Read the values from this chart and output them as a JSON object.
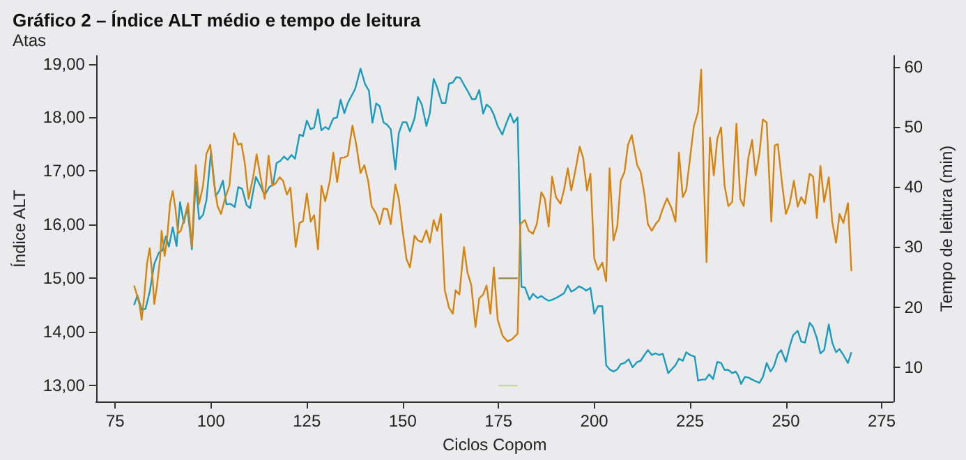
{
  "chart_data": {
    "type": "line",
    "title": "Gráfico 2 – Índice ALT médio e tempo de leitura",
    "subtitle": "Atas",
    "xlabel": "Ciclos Copom",
    "ylabel": "Índice ALT",
    "y2label": "Tempo de leitura (min)",
    "xlim": [
      70,
      278
    ],
    "xticks": [
      75,
      100,
      125,
      150,
      175,
      200,
      225,
      250,
      275
    ],
    "ylim": [
      12.7,
      19.15
    ],
    "yticks": [
      {
        "value": 13,
        "label": "13,00"
      },
      {
        "value": 14,
        "label": "14,00"
      },
      {
        "value": 15,
        "label": "15,00"
      },
      {
        "value": 16,
        "label": "16,00"
      },
      {
        "value": 17,
        "label": "17,00"
      },
      {
        "value": 18,
        "label": "18,00"
      },
      {
        "value": 19,
        "label": "19,00"
      }
    ],
    "y2lim": [
      4.3,
      61.8
    ],
    "y2ticks": [
      10,
      20,
      30,
      40,
      50,
      60
    ],
    "grid": false,
    "marker": "none",
    "line_style": "solid",
    "series": [
      {
        "color": "#1a9bbd",
        "x": [
          79.9,
          80.8,
          81.9,
          82.9,
          84.0,
          85.2,
          86.4,
          87.3,
          88.2,
          89.0,
          90,
          91,
          91.9,
          92.9,
          93.8,
          95,
          96,
          96.9,
          97.9,
          98.8,
          100,
          101.2,
          102.1,
          103.1,
          104,
          105,
          106.2,
          107.1,
          108.1,
          109.3,
          110.2,
          111.7,
          112.9,
          114,
          115.2,
          116.2,
          117.1,
          118.1,
          119,
          120,
          121,
          121.9,
          123.1,
          124,
          125,
          126,
          126.9,
          127.9,
          128.8,
          129.8,
          130.7,
          131.9,
          132.9,
          133.8,
          134.8,
          135.7,
          136.7,
          137.6,
          139,
          140.2,
          141.2,
          142.1,
          143.1,
          144,
          145,
          146,
          146.9,
          148.1,
          149,
          150,
          151,
          151.9,
          153.1,
          154,
          155,
          156.2,
          157.1,
          158.1,
          159,
          160.2,
          161.2,
          162.1,
          163.1,
          164,
          165,
          166,
          166.9,
          168.1,
          169,
          170,
          171,
          171.9,
          172.9,
          173.8,
          174.8,
          176,
          177.1,
          178.1,
          179,
          180,
          181,
          181.9,
          183.1,
          184,
          185.2,
          186.2,
          187.1,
          188.1,
          189,
          190,
          191.2,
          192.1,
          193.1,
          194,
          195,
          196,
          196.9,
          197.9,
          199,
          200,
          201,
          202.1,
          203.1,
          204,
          205,
          206,
          206.9,
          207.9,
          209,
          210,
          211.2,
          212.1,
          213.1,
          214,
          215,
          216,
          216.9,
          217.9,
          219.3,
          220.2,
          221.2,
          222.1,
          223.1,
          224,
          225,
          226.2,
          227.1,
          228.1,
          229,
          230,
          231,
          232.1,
          233.1,
          234,
          235,
          236,
          236.9,
          237.6,
          238.3,
          239.3,
          240.2,
          241.2,
          242.1,
          243.1,
          244,
          245,
          246,
          246.9,
          247.9,
          248.8,
          250,
          251,
          251.9,
          253.1,
          254,
          255,
          256.2,
          257.1,
          258.1,
          259,
          260,
          261.2,
          262.1,
          263.1,
          264,
          265,
          266.2,
          267.1
        ],
        "values": [
          14.5,
          14.68,
          14.41,
          14.43,
          14.75,
          15.27,
          15.48,
          15.52,
          15.78,
          15.59,
          15.95,
          15.6,
          16.42,
          16.03,
          16.33,
          15.54,
          16.8,
          16.1,
          16.18,
          16.46,
          17.36,
          16.53,
          16.63,
          16.82,
          16.38,
          16.39,
          16.33,
          16.7,
          16.67,
          16.36,
          16.31,
          16.89,
          16.72,
          16.55,
          16.7,
          16.75,
          17.15,
          17.19,
          17.27,
          17.21,
          17.3,
          17.23,
          17.68,
          17.65,
          17.94,
          17.78,
          17.81,
          18.15,
          17.76,
          17.82,
          17.78,
          17.98,
          18.0,
          18.33,
          18.08,
          18.27,
          18.41,
          18.53,
          18.91,
          18.62,
          18.5,
          17.9,
          18.26,
          18.21,
          17.91,
          17.86,
          17.78,
          17.03,
          17.71,
          17.91,
          17.91,
          17.74,
          17.98,
          18.38,
          18.24,
          17.84,
          18.08,
          18.72,
          18.56,
          18.27,
          18.27,
          18.63,
          18.65,
          18.75,
          18.74,
          18.61,
          18.5,
          18.34,
          18.34,
          18.51,
          18.07,
          18.24,
          18.18,
          18.05,
          17.84,
          17.68,
          17.9,
          18.07,
          17.9,
          18.0,
          14.84,
          14.83,
          14.6,
          14.71,
          14.63,
          14.67,
          14.62,
          14.58,
          14.6,
          14.63,
          14.68,
          14.72,
          14.87,
          14.75,
          14.79,
          14.85,
          14.82,
          14.77,
          14.82,
          14.34,
          14.48,
          14.48,
          13.38,
          13.3,
          13.26,
          13.3,
          13.4,
          13.42,
          13.49,
          13.34,
          13.44,
          13.46,
          13.57,
          13.66,
          13.57,
          13.6,
          13.57,
          13.59,
          13.23,
          13.3,
          13.38,
          13.5,
          13.46,
          13.62,
          13.57,
          13.54,
          13.09,
          13.11,
          13.11,
          13.21,
          13.12,
          13.44,
          13.42,
          13.29,
          13.29,
          13.23,
          13.26,
          13.18,
          13.03,
          13.16,
          13.15,
          13.11,
          13.08,
          13.05,
          13.16,
          13.42,
          13.26,
          13.36,
          13.59,
          13.66,
          13.44,
          13.73,
          13.94,
          14.02,
          13.82,
          13.8,
          14.17,
          14.09,
          13.88,
          13.6,
          13.66,
          14.14,
          13.8,
          13.62,
          13.68,
          13.57,
          13.42,
          13.62
        ]
      },
      {
        "color": "#d4840f",
        "axis": "y2",
        "x": [
          79.9,
          80.5,
          81.3,
          81.9,
          82.6,
          83.3,
          84.0,
          84.8,
          85.2,
          85.9,
          86.7,
          87.1,
          87.9,
          88.6,
          89.3,
          90,
          90.7,
          91.4,
          92.1,
          93.1,
          94,
          95,
          96,
          96.9,
          97.9,
          98.8,
          99.8,
          100.7,
          101.7,
          102.6,
          103.6,
          104.8,
          106,
          107.1,
          107.9,
          108.8,
          109.8,
          111,
          111.9,
          112.9,
          114,
          115,
          116,
          116.9,
          117.9,
          118.8,
          119.8,
          120.7,
          121.7,
          122.1,
          123.1,
          124,
          125,
          126,
          126.9,
          127.9,
          128.8,
          129.8,
          131,
          131.9,
          132.9,
          133.8,
          134.8,
          135.7,
          136.9,
          137.9,
          139,
          140,
          141,
          141.9,
          143.1,
          144,
          145,
          146,
          146.9,
          148.1,
          149,
          150,
          151,
          151.9,
          153.1,
          154,
          155,
          156.2,
          157.1,
          158.1,
          159,
          160,
          161,
          162.1,
          163.1,
          163.8,
          164.8,
          166,
          166.9,
          167.9,
          169,
          170,
          171,
          171.9,
          172.9,
          173.8,
          174.8,
          176.1,
          177.4,
          178.6,
          180,
          180.7,
          181.9,
          182.9,
          184,
          185,
          186.2,
          187.1,
          188.1,
          189,
          190,
          191.2,
          192.1,
          193.1,
          194,
          195,
          196.2,
          197.1,
          198.1,
          199,
          200,
          201,
          202.1,
          203.1,
          204,
          205,
          206,
          206.9,
          207.9,
          208.8,
          209.8,
          211.2,
          212.1,
          213.1,
          214,
          215,
          216,
          216.9,
          217.9,
          219,
          220.2,
          221.2,
          222.1,
          223.1,
          224,
          225,
          226,
          227.1,
          227.9,
          228.6,
          229.3,
          230.2,
          231.2,
          232.1,
          233.1,
          234,
          235,
          236,
          237.1,
          238.1,
          239,
          240.2,
          241.2,
          242.1,
          243.1,
          244,
          245,
          246.2,
          247.1,
          247.9,
          249,
          250,
          251,
          252.1,
          253.1,
          254,
          255,
          256.2,
          257.1,
          258.1,
          259,
          260,
          261.2,
          262.1,
          263.1,
          264,
          265,
          266.2,
          267.1
        ],
        "values": [
          23.6,
          22.4,
          20.5,
          17.9,
          22.1,
          27.3,
          29.8,
          24.3,
          20.5,
          23.6,
          28.1,
          32.7,
          28.5,
          31.9,
          37.2,
          39.3,
          36.4,
          32.3,
          32.7,
          34.9,
          37.3,
          30,
          43.6,
          37.2,
          40.2,
          45.5,
          47,
          41,
          36.8,
          35.5,
          38,
          40.2,
          48.9,
          47,
          47.2,
          44,
          38,
          41.7,
          45.4,
          41.7,
          38,
          45.2,
          40.2,
          40.6,
          41.6,
          41,
          38.7,
          39.9,
          32.8,
          30,
          34,
          34.3,
          38.9,
          34.2,
          35.3,
          29.6,
          40.2,
          37.6,
          41,
          45.7,
          40.8,
          44.8,
          44.9,
          45.2,
          50.2,
          47,
          42.3,
          43.6,
          41,
          36.8,
          35.5,
          33.8,
          36.4,
          36.3,
          33.8,
          40.4,
          38,
          32.7,
          28,
          26.6,
          31.9,
          31.1,
          30.8,
          32.8,
          30.7,
          34.5,
          32.7,
          35.5,
          22.8,
          19.9,
          18.9,
          22.8,
          22.1,
          30,
          25.8,
          23.7,
          16.7,
          21.5,
          22.1,
          23.6,
          18.9,
          26.6,
          17.9,
          15.2,
          14.3,
          14.7,
          15.6,
          33.8,
          34.5,
          32.7,
          32.2,
          33.8,
          39.1,
          38,
          33.4,
          41.7,
          38.3,
          37.2,
          39.5,
          43.1,
          39.4,
          42.5,
          46.7,
          44.8,
          39.4,
          42.2,
          28.1,
          26.2,
          27.4,
          24.3,
          43.1,
          31.1,
          33.4,
          41,
          42.5,
          47,
          48.6,
          43.6,
          42.5,
          38.7,
          33.8,
          32.7,
          33.8,
          34.5,
          36.4,
          38.1,
          36.4,
          34.2,
          45.7,
          38.3,
          39.5,
          44.8,
          50.1,
          52.5,
          59.5,
          41,
          27.5,
          48.2,
          41.9,
          48,
          49.9,
          40.2,
          36.8,
          37.5,
          50.5,
          38,
          36.8,
          44.8,
          47.8,
          41.9,
          45.5,
          51.2,
          50.7,
          34.2,
          46.9,
          47.1,
          40.6,
          35.5,
          37.2,
          41,
          36.7,
          38.3,
          37.2,
          42.2,
          41.7,
          34.8,
          43.5,
          37.5,
          41.6,
          34.2,
          30.7,
          35.5,
          34,
          37.3,
          26
        ]
      },
      {
        "color": "#9b8a4f",
        "x": [
          175,
          180
        ],
        "values": [
          15,
          15
        ]
      },
      {
        "color": "#c5d88e",
        "x": [
          175,
          180
        ],
        "values": [
          13,
          13
        ]
      }
    ]
  }
}
